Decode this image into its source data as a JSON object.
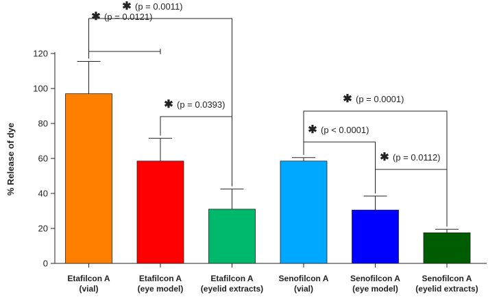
{
  "chart_data": {
    "type": "bar",
    "title": "",
    "xlabel": "",
    "ylabel": "% Release of dye",
    "ylim": [
      0,
      120
    ],
    "yticks": [
      0,
      20,
      40,
      60,
      80,
      100,
      120
    ],
    "categories": [
      {
        "line1": "Etafilcon A",
        "line2": "(vial)"
      },
      {
        "line1": "Etafilcon A",
        "line2": "(eye model)"
      },
      {
        "line1": "Etafilcon A",
        "line2": "(eyelid extracts)"
      },
      {
        "line1": "Senofilcon A",
        "line2": "(vial)"
      },
      {
        "line1": "Senofilcon A",
        "line2": "(eye model)"
      },
      {
        "line1": "Senofilcon A",
        "line2": "(eyelid extracts)"
      }
    ],
    "values": [
      97,
      58.5,
      31,
      58.5,
      30.5,
      17.5
    ],
    "errors": [
      18.5,
      13,
      11.5,
      2,
      8,
      2
    ],
    "colors": [
      "#ff8000",
      "#ff0000",
      "#00b86b",
      "#00a8ff",
      "#0000ff",
      "#005c00"
    ],
    "comparisons": [
      {
        "from": 0,
        "to": 1,
        "label": "(p = 0.0121)",
        "p_value": "0.0121",
        "star": "✱"
      },
      {
        "from": 0,
        "to": 2,
        "label": "(p = 0.0011)",
        "p_value": "0.0011",
        "star": "✱"
      },
      {
        "from": 1,
        "to": 2,
        "label": "(p = 0.0393)",
        "p_value": "0.0393",
        "star": "✱"
      },
      {
        "from": 3,
        "to": 4,
        "label": "(p < 0.0001)",
        "p_value": "< 0.0001",
        "star": "✱"
      },
      {
        "from": 3,
        "to": 5,
        "label": "(p = 0.0001)",
        "p_value": "0.0001",
        "star": "✱"
      },
      {
        "from": 4,
        "to": 5,
        "label": "(p = 0.0112)",
        "p_value": "0.0112",
        "star": "✱"
      }
    ]
  }
}
